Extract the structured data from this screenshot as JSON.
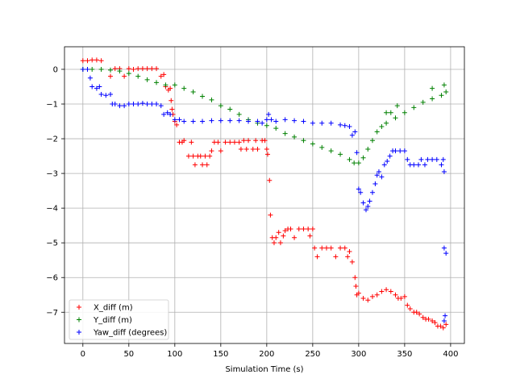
{
  "chart_data": {
    "type": "scatter",
    "title": "",
    "xlabel": "Simulation Time (s)",
    "ylabel": "",
    "xlim": [
      -20,
      415
    ],
    "ylim": [
      -7.9,
      0.65
    ],
    "xticks": [
      0,
      50,
      100,
      150,
      200,
      250,
      300,
      350,
      400
    ],
    "yticks": [
      0,
      -1,
      -2,
      -3,
      -4,
      -5,
      -6,
      -7
    ],
    "grid": true,
    "legend_position": "lower-left",
    "marker": "+",
    "series": [
      {
        "name": "X_diff (m)",
        "color": "#ff0000",
        "points": [
          [
            0,
            0.25
          ],
          [
            5,
            0.25
          ],
          [
            10,
            0.27
          ],
          [
            15,
            0.27
          ],
          [
            20,
            0.25
          ],
          [
            30,
            -0.2
          ],
          [
            35,
            0.02
          ],
          [
            40,
            0.02
          ],
          [
            45,
            -0.2
          ],
          [
            50,
            0.02
          ],
          [
            55,
            0.0
          ],
          [
            60,
            0.02
          ],
          [
            65,
            0.02
          ],
          [
            70,
            0.02
          ],
          [
            75,
            0.02
          ],
          [
            80,
            0.02
          ],
          [
            85,
            -0.2
          ],
          [
            88,
            -0.15
          ],
          [
            90,
            -0.5
          ],
          [
            93,
            -0.6
          ],
          [
            95,
            -0.55
          ],
          [
            96,
            -0.9
          ],
          [
            97,
            -1.15
          ],
          [
            98,
            -1.3
          ],
          [
            100,
            -1.5
          ],
          [
            102,
            -1.6
          ],
          [
            105,
            -2.1
          ],
          [
            108,
            -2.1
          ],
          [
            110,
            -2.05
          ],
          [
            115,
            -2.5
          ],
          [
            118,
            -2.1
          ],
          [
            120,
            -2.5
          ],
          [
            122,
            -2.75
          ],
          [
            125,
            -2.5
          ],
          [
            128,
            -2.5
          ],
          [
            130,
            -2.75
          ],
          [
            133,
            -2.5
          ],
          [
            135,
            -2.75
          ],
          [
            138,
            -2.5
          ],
          [
            140,
            -2.35
          ],
          [
            143,
            -2.1
          ],
          [
            147,
            -2.1
          ],
          [
            150,
            -2.35
          ],
          [
            155,
            -2.1
          ],
          [
            160,
            -2.1
          ],
          [
            165,
            -2.1
          ],
          [
            170,
            -2.1
          ],
          [
            172,
            -2.3
          ],
          [
            175,
            -2.05
          ],
          [
            178,
            -2.3
          ],
          [
            180,
            -2.05
          ],
          [
            185,
            -2.3
          ],
          [
            188,
            -2.05
          ],
          [
            190,
            -2.3
          ],
          [
            195,
            -2.05
          ],
          [
            198,
            -2.05
          ],
          [
            200,
            -2.3
          ],
          [
            201,
            -2.45
          ],
          [
            203,
            -3.2
          ],
          [
            204,
            -4.2
          ],
          [
            206,
            -4.85
          ],
          [
            208,
            -5.0
          ],
          [
            210,
            -4.85
          ],
          [
            213,
            -4.7
          ],
          [
            215,
            -5.0
          ],
          [
            218,
            -4.8
          ],
          [
            220,
            -4.65
          ],
          [
            223,
            -4.6
          ],
          [
            226,
            -4.6
          ],
          [
            230,
            -4.85
          ],
          [
            235,
            -4.6
          ],
          [
            240,
            -4.6
          ],
          [
            245,
            -4.6
          ],
          [
            247,
            -4.8
          ],
          [
            250,
            -4.6
          ],
          [
            252,
            -5.15
          ],
          [
            255,
            -5.4
          ],
          [
            260,
            -5.15
          ],
          [
            265,
            -5.15
          ],
          [
            270,
            -5.15
          ],
          [
            275,
            -5.4
          ],
          [
            280,
            -5.15
          ],
          [
            285,
            -5.15
          ],
          [
            288,
            -5.4
          ],
          [
            290,
            -5.25
          ],
          [
            293,
            -5.55
          ],
          [
            296,
            -6.0
          ],
          [
            297,
            -6.25
          ],
          [
            298,
            -6.5
          ],
          [
            300,
            -6.45
          ],
          [
            305,
            -6.6
          ],
          [
            310,
            -6.65
          ],
          [
            315,
            -6.55
          ],
          [
            320,
            -6.5
          ],
          [
            325,
            -6.4
          ],
          [
            330,
            -6.35
          ],
          [
            335,
            -6.4
          ],
          [
            340,
            -6.5
          ],
          [
            343,
            -6.6
          ],
          [
            346,
            -6.6
          ],
          [
            350,
            -6.55
          ],
          [
            353,
            -6.8
          ],
          [
            356,
            -6.9
          ],
          [
            360,
            -7.0
          ],
          [
            363,
            -7.0
          ],
          [
            366,
            -7.05
          ],
          [
            370,
            -7.15
          ],
          [
            373,
            -7.2
          ],
          [
            376,
            -7.2
          ],
          [
            380,
            -7.25
          ],
          [
            383,
            -7.3
          ],
          [
            386,
            -7.4
          ],
          [
            389,
            -7.4
          ],
          [
            392,
            -7.45
          ],
          [
            395,
            -7.35
          ]
        ]
      },
      {
        "name": "Y_diff (m)",
        "color": "#008000",
        "points": [
          [
            0,
            0.0
          ],
          [
            10,
            0.0
          ],
          [
            20,
            0.0
          ],
          [
            30,
            -0.02
          ],
          [
            40,
            -0.05
          ],
          [
            50,
            -0.12
          ],
          [
            60,
            -0.2
          ],
          [
            70,
            -0.3
          ],
          [
            80,
            -0.38
          ],
          [
            90,
            -0.45
          ],
          [
            100,
            -0.45
          ],
          [
            110,
            -0.55
          ],
          [
            120,
            -0.65
          ],
          [
            130,
            -0.78
          ],
          [
            140,
            -0.88
          ],
          [
            150,
            -1.05
          ],
          [
            160,
            -1.15
          ],
          [
            170,
            -1.3
          ],
          [
            180,
            -1.45
          ],
          [
            190,
            -1.55
          ],
          [
            200,
            -1.62
          ],
          [
            210,
            -1.7
          ],
          [
            220,
            -1.85
          ],
          [
            230,
            -1.95
          ],
          [
            240,
            -2.05
          ],
          [
            250,
            -2.15
          ],
          [
            260,
            -2.25
          ],
          [
            270,
            -2.35
          ],
          [
            280,
            -2.45
          ],
          [
            290,
            -2.6
          ],
          [
            295,
            -2.7
          ],
          [
            300,
            -2.7
          ],
          [
            305,
            -2.55
          ],
          [
            310,
            -2.3
          ],
          [
            315,
            -2.05
          ],
          [
            320,
            -1.8
          ],
          [
            325,
            -1.65
          ],
          [
            330,
            -1.55
          ],
          [
            340,
            -1.4
          ],
          [
            350,
            -1.25
          ],
          [
            360,
            -1.1
          ],
          [
            370,
            -0.95
          ],
          [
            380,
            -0.85
          ],
          [
            390,
            -0.75
          ],
          [
            395,
            -0.65
          ],
          [
            393,
            -0.45
          ],
          [
            380,
            -0.55
          ],
          [
            342,
            -1.05
          ],
          [
            335,
            -1.25
          ],
          [
            330,
            -1.25
          ]
        ]
      },
      {
        "name": "Yaw_diff (degrees)",
        "color": "#0000ff",
        "points": [
          [
            0,
            0.0
          ],
          [
            5,
            0.0
          ],
          [
            8,
            -0.25
          ],
          [
            10,
            -0.5
          ],
          [
            15,
            -0.55
          ],
          [
            18,
            -0.5
          ],
          [
            20,
            -0.72
          ],
          [
            25,
            -0.75
          ],
          [
            30,
            -0.72
          ],
          [
            32,
            -1.0
          ],
          [
            35,
            -1.0
          ],
          [
            40,
            -1.05
          ],
          [
            45,
            -1.05
          ],
          [
            50,
            -1.0
          ],
          [
            55,
            -1.0
          ],
          [
            60,
            -1.0
          ],
          [
            65,
            -0.98
          ],
          [
            70,
            -1.0
          ],
          [
            75,
            -1.0
          ],
          [
            80,
            -1.0
          ],
          [
            85,
            -1.05
          ],
          [
            88,
            -1.3
          ],
          [
            92,
            -1.25
          ],
          [
            95,
            -1.3
          ],
          [
            100,
            -1.45
          ],
          [
            105,
            -1.45
          ],
          [
            110,
            -1.5
          ],
          [
            120,
            -1.5
          ],
          [
            130,
            -1.5
          ],
          [
            140,
            -1.48
          ],
          [
            150,
            -1.48
          ],
          [
            160,
            -1.48
          ],
          [
            170,
            -1.48
          ],
          [
            180,
            -1.5
          ],
          [
            190,
            -1.5
          ],
          [
            195,
            -1.55
          ],
          [
            200,
            -1.45
          ],
          [
            202,
            -1.3
          ],
          [
            205,
            -1.45
          ],
          [
            210,
            -1.5
          ],
          [
            220,
            -1.45
          ],
          [
            230,
            -1.48
          ],
          [
            240,
            -1.5
          ],
          [
            250,
            -1.55
          ],
          [
            260,
            -1.55
          ],
          [
            270,
            -1.55
          ],
          [
            280,
            -1.6
          ],
          [
            285,
            -1.62
          ],
          [
            290,
            -1.65
          ],
          [
            293,
            -1.9
          ],
          [
            296,
            -1.8
          ],
          [
            298,
            -2.4
          ],
          [
            300,
            -3.45
          ],
          [
            302,
            -3.55
          ],
          [
            305,
            -3.85
          ],
          [
            308,
            -4.05
          ],
          [
            310,
            -3.95
          ],
          [
            312,
            -3.8
          ],
          [
            315,
            -3.55
          ],
          [
            318,
            -3.3
          ],
          [
            320,
            -3.05
          ],
          [
            322,
            -2.95
          ],
          [
            325,
            -3.1
          ],
          [
            328,
            -2.75
          ],
          [
            331,
            -2.65
          ],
          [
            334,
            -2.5
          ],
          [
            337,
            -2.35
          ],
          [
            340,
            -2.35
          ],
          [
            345,
            -2.35
          ],
          [
            350,
            -2.35
          ],
          [
            353,
            -2.6
          ],
          [
            356,
            -2.75
          ],
          [
            360,
            -2.75
          ],
          [
            365,
            -2.75
          ],
          [
            368,
            -2.6
          ],
          [
            372,
            -2.75
          ],
          [
            375,
            -2.6
          ],
          [
            380,
            -2.6
          ],
          [
            385,
            -2.6
          ],
          [
            390,
            -2.75
          ],
          [
            392,
            -2.6
          ],
          [
            393,
            -2.95
          ],
          [
            393,
            -5.15
          ],
          [
            395,
            -5.3
          ],
          [
            394,
            -7.1
          ],
          [
            393,
            -7.25
          ]
        ]
      }
    ]
  }
}
